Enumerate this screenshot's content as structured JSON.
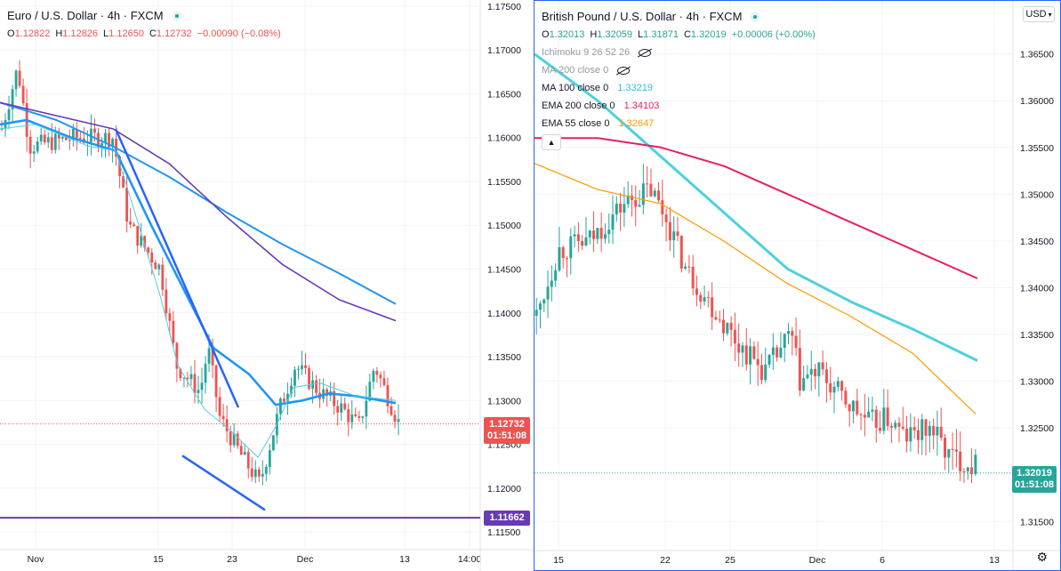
{
  "colors": {
    "up": "#26a69a",
    "down": "#ef5350",
    "blue": "#2962ff",
    "ma100_left": "#2196f3",
    "ma200_left": "#673ab7",
    "fast_left": "#2196f3",
    "thin_left": "#4dd0e1",
    "ma100_right": "#4dd0e1",
    "ema200": "#e91e63",
    "ema55": "#ff9800",
    "support": "#673ab7",
    "grid": "#f0f3fa"
  },
  "left": {
    "title": "Euro / U.S. Dollar · 4h · FXCM",
    "ohlc": {
      "o_label": "O",
      "o": "1.12822",
      "h_label": "H",
      "h": "1.12826",
      "l_label": "L",
      "l": "1.12650",
      "c_label": "C",
      "c": "1.12732",
      "chg": "−0.00090 (−0.08%)"
    },
    "price_tag": {
      "price": "1.12732",
      "time": "01:51:08"
    },
    "support_tag": "1.11662"
  },
  "right": {
    "title": "British Pound / U.S. Dollar · 4h · FXCM",
    "ohlc": {
      "o_label": "O",
      "o": "1.32013",
      "h_label": "H",
      "h": "1.32059",
      "l_label": "L",
      "l": "1.31871",
      "c_label": "C",
      "c": "1.32019",
      "chg": "+0.00006 (+0.00%)"
    },
    "indicators": [
      {
        "label": "Ichimoku 9 26 52 26",
        "value": "",
        "hidden": true
      },
      {
        "label": "MA 200 close 0",
        "value": "",
        "hidden": true
      },
      {
        "label": "MA 100 close 0",
        "value": "1.33219",
        "color": "#26c6da"
      },
      {
        "label": "EMA 200 close 0",
        "value": "1.34103",
        "color": "#e91e63"
      },
      {
        "label": "EMA 55 close 0",
        "value": "1.32647",
        "color": "#ff9800"
      }
    ],
    "collapse_icon": "chevron-up-icon",
    "currency": "USD",
    "price_tag": {
      "price": "1.32019",
      "time": "01:51:08"
    }
  },
  "chart_data": [
    {
      "type": "candlestick",
      "title": "Euro / U.S. Dollar · 4h · FXCM",
      "ylim": [
        1.1148,
        1.1752
      ],
      "y_ticks": [
        "1.17500",
        "1.17000",
        "1.16500",
        "1.16000",
        "1.15500",
        "1.15000",
        "1.14500",
        "1.14000",
        "1.13500",
        "1.13000",
        "1.12500",
        "1.12000",
        "1.11500"
      ],
      "x_ticks": [
        "Nov",
        "15",
        "23",
        "Dec",
        "13",
        "14:00"
      ],
      "last_price": 1.12732,
      "support_level": 1.11662,
      "series": [
        {
          "name": "MA 100",
          "values": [
            1.164,
            1.162,
            1.159,
            1.1555,
            1.1515,
            1.1478,
            1.1445,
            1.141
          ]
        },
        {
          "name": "MA 200",
          "values": [
            1.164,
            1.1625,
            1.161,
            1.157,
            1.151,
            1.1455,
            1.1415,
            1.1391
          ]
        }
      ]
    },
    {
      "type": "candlestick",
      "title": "British Pound / U.S. Dollar · 4h · FXCM",
      "ylim": [
        1.3136,
        1.3702
      ],
      "y_ticks": [
        "1.36500",
        "1.36000",
        "1.35500",
        "1.35000",
        "1.34500",
        "1.34000",
        "1.33500",
        "1.33000",
        "1.32500",
        "1.32000",
        "1.31500"
      ],
      "x_ticks": [
        "15",
        "22",
        "25",
        "Dec",
        "6",
        "13"
      ],
      "last_price": 1.32019,
      "series": [
        {
          "name": "MA 100",
          "values": [
            1.365,
            1.36,
            1.354,
            1.348,
            1.342,
            1.3385,
            1.3355,
            1.3322
          ]
        },
        {
          "name": "EMA 200",
          "values": [
            1.356,
            1.356,
            1.355,
            1.353,
            1.35,
            1.347,
            1.344,
            1.341
          ]
        },
        {
          "name": "EMA 55",
          "values": [
            1.3533,
            1.3505,
            1.349,
            1.345,
            1.3405,
            1.337,
            1.333,
            1.3265
          ]
        }
      ]
    }
  ]
}
